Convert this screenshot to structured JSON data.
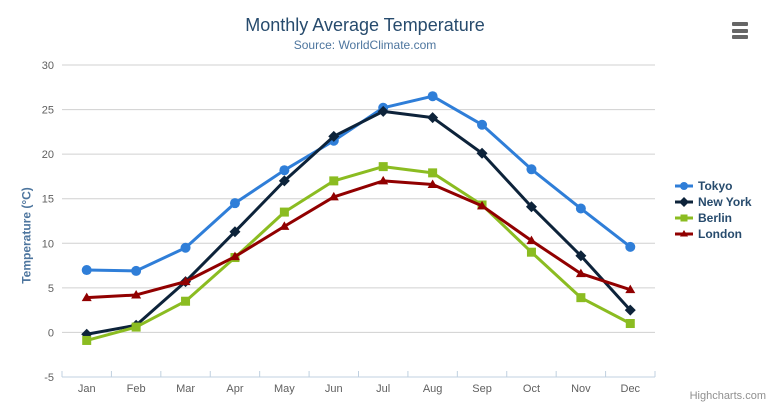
{
  "chart_data": {
    "type": "line",
    "title": "Monthly Average Temperature",
    "subtitle": "Source: WorldClimate.com",
    "xlabel": "",
    "ylabel": "Temperature (°C)",
    "categories": [
      "Jan",
      "Feb",
      "Mar",
      "Apr",
      "May",
      "Jun",
      "Jul",
      "Aug",
      "Sep",
      "Oct",
      "Nov",
      "Dec"
    ],
    "ylim": [
      -5,
      30
    ],
    "yticks": [
      -5,
      0,
      5,
      10,
      15,
      20,
      25,
      30
    ],
    "grid": true,
    "legend_position": "right",
    "series": [
      {
        "name": "Tokyo",
        "color": "#2f7ed8",
        "marker": "circle",
        "values": [
          7.0,
          6.9,
          9.5,
          14.5,
          18.2,
          21.5,
          25.2,
          26.5,
          23.3,
          18.3,
          13.9,
          9.6
        ]
      },
      {
        "name": "New York",
        "color": "#0d233a",
        "marker": "diamond",
        "values": [
          -0.2,
          0.8,
          5.7,
          11.3,
          17.0,
          22.0,
          24.8,
          24.1,
          20.1,
          14.1,
          8.6,
          2.5
        ]
      },
      {
        "name": "Berlin",
        "color": "#8bbc21",
        "marker": "square",
        "values": [
          -0.9,
          0.6,
          3.5,
          8.4,
          13.5,
          17.0,
          18.6,
          17.9,
          14.3,
          9.0,
          3.9,
          1.0
        ]
      },
      {
        "name": "London",
        "color": "#910000",
        "marker": "triangle",
        "values": [
          3.9,
          4.2,
          5.7,
          8.5,
          11.9,
          15.2,
          17.0,
          16.6,
          14.2,
          10.3,
          6.6,
          4.8
        ]
      }
    ]
  },
  "credits": {
    "label": "Highcharts.com"
  },
  "export_menu": {
    "icon": "hamburger-icon"
  },
  "theme": {
    "background": "#ffffff",
    "title_color": "#274b6d",
    "subtitle_color": "#4d759e",
    "axis_title_color": "#4d759e",
    "tick_label_color": "#606060",
    "gridline_color": "#d0d0d0",
    "axis_line_color": "#c0d0e0",
    "legend_text_color": "#274b6d",
    "credit_color": "#909090",
    "menu_icon_color": "#666666"
  }
}
